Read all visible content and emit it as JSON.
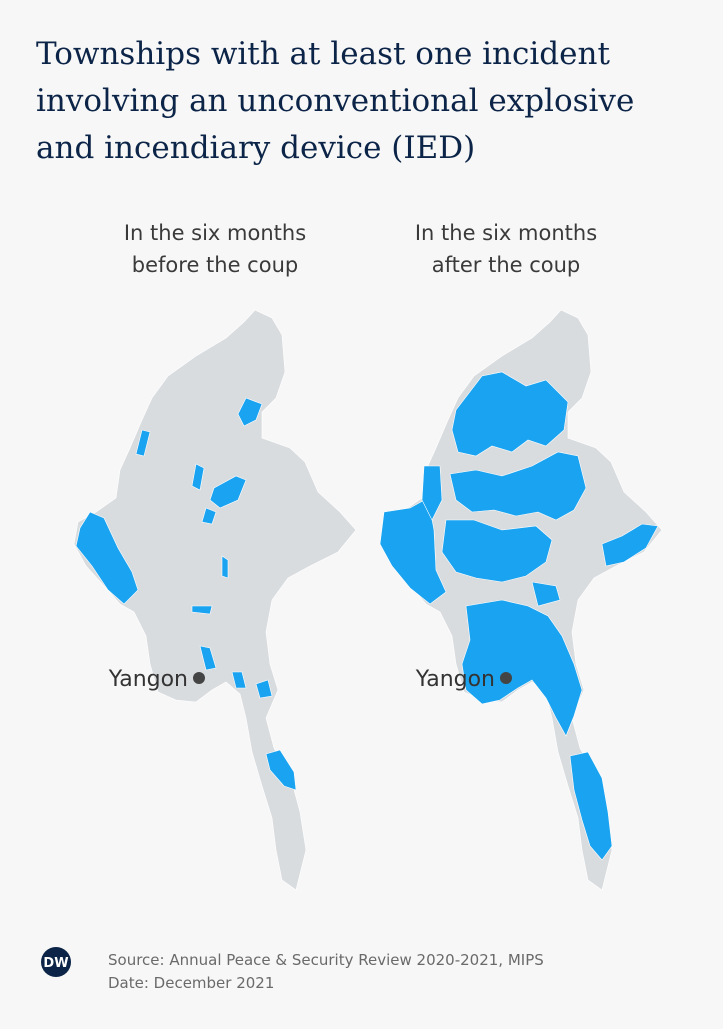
{
  "header": {
    "title_lines": [
      "Townships with at least one incident",
      "involving an unconventional explosive",
      "and incendiary device (IED)"
    ]
  },
  "panels": [
    {
      "subtitle_lines": [
        "In the six months",
        "before the coup"
      ],
      "city_label": "Yangon"
    },
    {
      "subtitle_lines": [
        "In the six months",
        "after the coup"
      ],
      "city_label": "Yangon"
    }
  ],
  "footer": {
    "logo": "DW",
    "source": "Source: Annual Peace & Security Review 2020-2021, MIPS",
    "date": "Date: December 2021"
  }
}
